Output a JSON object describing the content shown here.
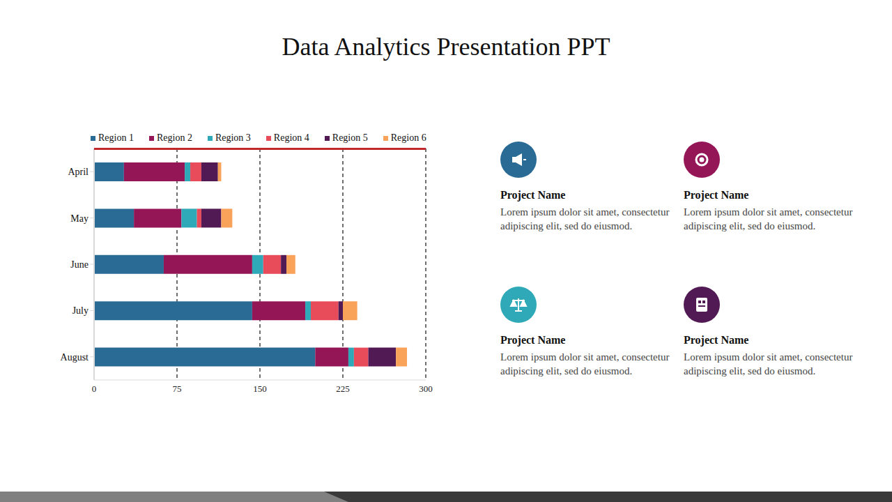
{
  "chart_data": {
    "type": "bar",
    "title": "Data Analytics Presentation PPT",
    "orientation": "horizontal",
    "stacked": true,
    "grid": true,
    "legend": "top",
    "categories": [
      "April",
      "May",
      "June",
      "July",
      "August"
    ],
    "xlim": [
      0,
      300
    ],
    "xticks": [
      0,
      75,
      150,
      225,
      300
    ],
    "series": [
      {
        "name": "Region 1",
        "color": "#2a6b96",
        "values": [
          27,
          36,
          63,
          143,
          200
        ]
      },
      {
        "name": "Region 2",
        "color": "#951657",
        "values": [
          55,
          43,
          80,
          48,
          30
        ]
      },
      {
        "name": "Region 3",
        "color": "#2fa9b8",
        "values": [
          5,
          14,
          10,
          5,
          5
        ]
      },
      {
        "name": "Region 4",
        "color": "#e84c5a",
        "values": [
          10,
          4,
          16,
          25,
          13
        ]
      },
      {
        "name": "Region 5",
        "color": "#521a54",
        "values": [
          15,
          18,
          5,
          4,
          25
        ]
      },
      {
        "name": "Region 6",
        "color": "#f9a35a",
        "values": [
          3,
          10,
          8,
          13,
          10
        ]
      }
    ]
  },
  "cards": [
    {
      "title": "Project Name",
      "text": "Lorem ipsum dolor sit amet, consectetur adipiscing elit, sed do eiusmod."
    },
    {
      "title": "Project Name",
      "text": "Lorem ipsum dolor sit amet, consectetur adipiscing elit, sed do eiusmod."
    },
    {
      "title": "Project Name",
      "text": "Lorem ipsum dolor sit amet, consectetur adipiscing elit, sed do eiusmod."
    },
    {
      "title": "Project Name",
      "text": "Lorem ipsum dolor sit amet, consectetur adipiscing elit, sed do eiusmod."
    }
  ]
}
